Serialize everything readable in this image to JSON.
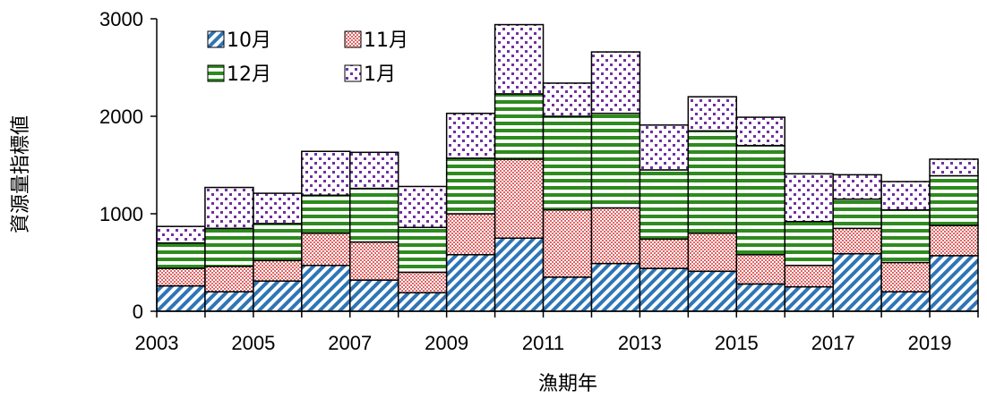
{
  "chart_data": {
    "type": "bar",
    "stacked": true,
    "xlabel": "漁期年",
    "ylabel": "資源量指標値",
    "ylim": [
      0,
      3000
    ],
    "yticks": [
      0,
      1000,
      2000,
      3000
    ],
    "categories": [
      "2003",
      "2004",
      "2005",
      "2006",
      "2007",
      "2008",
      "2009",
      "2010",
      "2011",
      "2012",
      "2013",
      "2014",
      "2015",
      "2016",
      "2017",
      "2018",
      "2019"
    ],
    "xtick_labels": [
      "2003",
      "2005",
      "2007",
      "2009",
      "2011",
      "2013",
      "2015",
      "2017",
      "2019"
    ],
    "series": [
      {
        "name": "10月",
        "color": "#2e75b6",
        "pattern": "diagonal-stripes",
        "values": [
          260,
          200,
          310,
          470,
          320,
          190,
          580,
          750,
          350,
          490,
          440,
          410,
          280,
          250,
          590,
          200,
          570
        ]
      },
      {
        "name": "11月",
        "color": "#e06666",
        "pattern": "checker",
        "values": [
          180,
          260,
          210,
          330,
          390,
          210,
          420,
          810,
          690,
          570,
          300,
          390,
          300,
          220,
          260,
          300,
          310
        ]
      },
      {
        "name": "12月",
        "color": "#2e8b1e",
        "pattern": "horizontal-stripes",
        "values": [
          260,
          390,
          380,
          390,
          550,
          460,
          570,
          670,
          960,
          970,
          710,
          1050,
          1120,
          450,
          300,
          540,
          510
        ]
      },
      {
        "name": "1月",
        "color": "#7030a0",
        "pattern": "dots",
        "values": [
          170,
          420,
          310,
          450,
          370,
          420,
          460,
          710,
          340,
          630,
          460,
          350,
          290,
          490,
          250,
          290,
          170
        ]
      }
    ],
    "legend": {
      "position": "top-left",
      "columns": 2
    },
    "grid": false
  }
}
